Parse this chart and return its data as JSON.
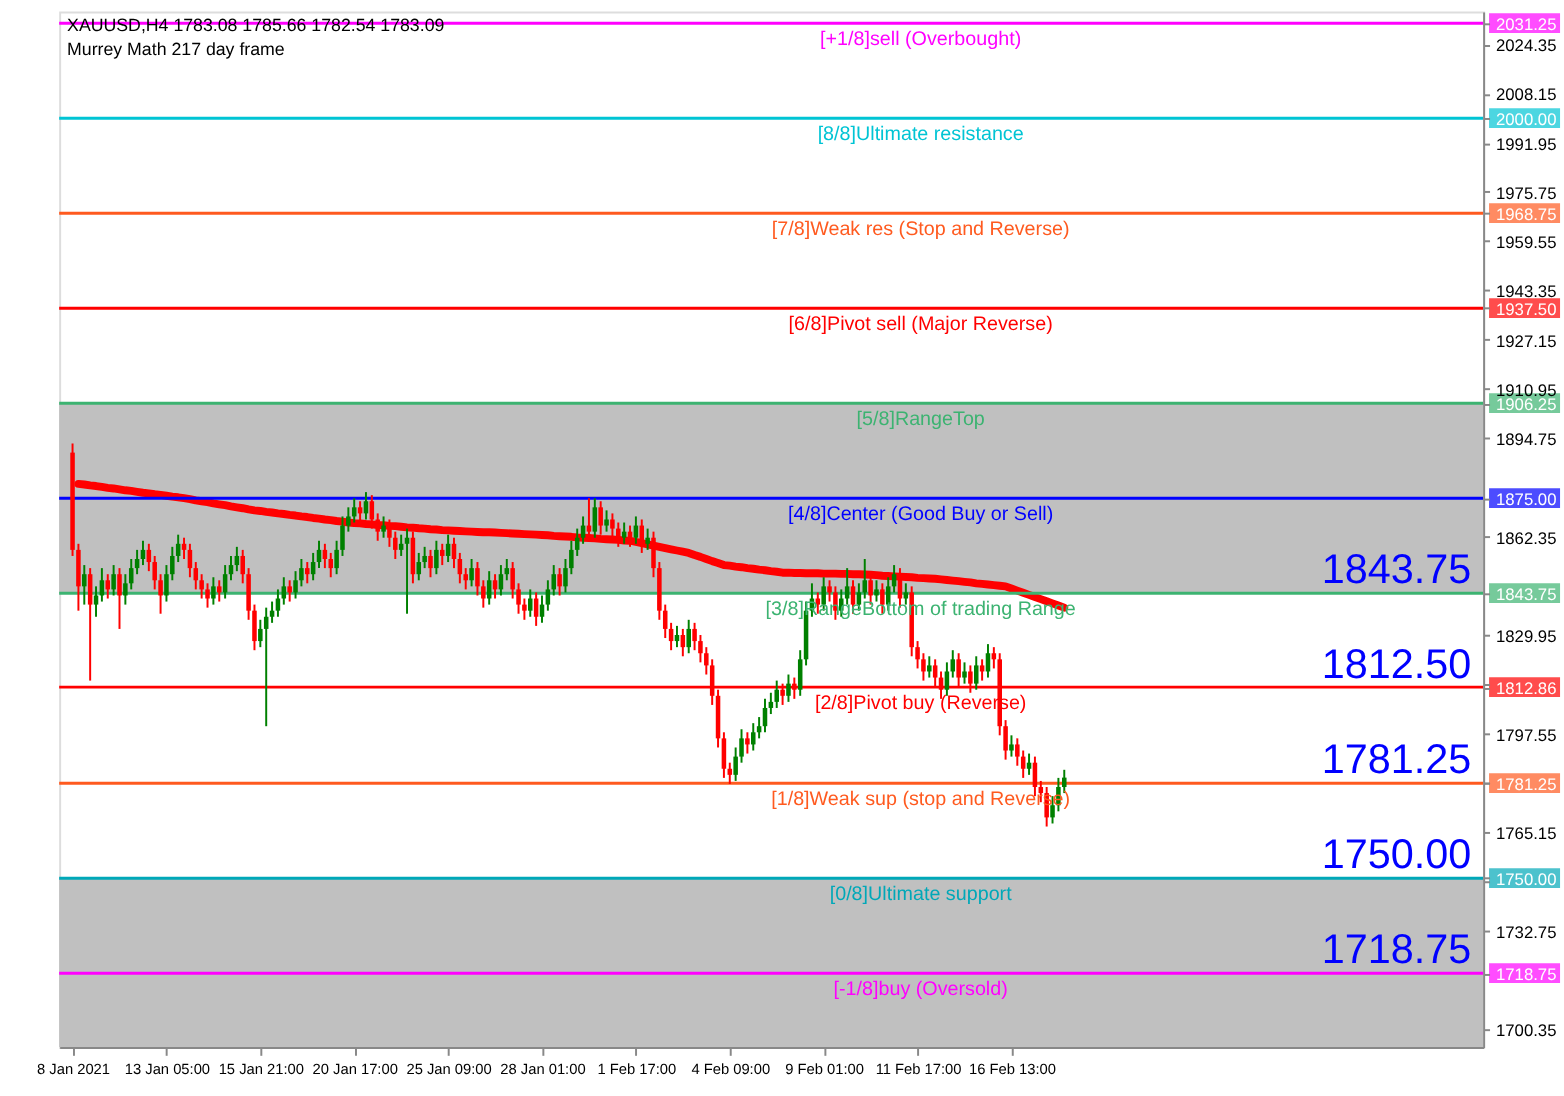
{
  "chart_data": {
    "type": "candlestick",
    "title": "XAUUSD,H4  1783.08 1785.66 1782.54 1783.09",
    "subtitle": "Murrey Math 217 day frame",
    "categories": [
      "8 Jan 2021",
      null,
      null,
      null,
      null,
      null,
      null,
      null,
      null,
      null,
      null,
      null,
      null,
      null,
      null,
      null,
      "13 Jan 05:00",
      null,
      null,
      null,
      null,
      null,
      null,
      null,
      null,
      null,
      null,
      null,
      null,
      null,
      null,
      null,
      "15 Jan 21:00",
      null,
      null,
      null,
      null,
      null,
      null,
      null,
      null,
      null,
      null,
      null,
      null,
      null,
      null,
      null,
      "20 Jan 17:00",
      null,
      null,
      null,
      null,
      null,
      null,
      null,
      null,
      null,
      null,
      null,
      null,
      null,
      null,
      null,
      "25 Jan 09:00",
      null,
      null,
      null,
      null,
      null,
      null,
      null,
      null,
      null,
      null,
      null,
      null,
      null,
      null,
      null,
      "28 Jan 01:00",
      null,
      null,
      null,
      null,
      null,
      null,
      null,
      null,
      null,
      null,
      null,
      null,
      null,
      null,
      null,
      "1 Feb 17:00",
      null,
      null,
      null,
      null,
      null,
      null,
      null,
      null,
      null,
      null,
      null,
      null,
      null,
      null,
      null,
      "4 Feb 09:00",
      null,
      null,
      null,
      null,
      null,
      null,
      null,
      null,
      null,
      null,
      null,
      null,
      null,
      null,
      null,
      "9 Feb 01:00",
      null,
      null,
      null,
      null,
      null,
      null,
      null,
      null,
      null,
      null,
      null,
      null,
      null,
      null,
      null,
      "11 Feb 17:00",
      null,
      null,
      null,
      null,
      null,
      null,
      null,
      null,
      null,
      null,
      null,
      null,
      null,
      null,
      null,
      "16 Feb 13:00",
      null,
      null,
      null,
      null,
      null,
      null,
      null,
      null,
      null
    ],
    "ylim": [
      1694.5,
      2035.1
    ],
    "yticks": [
      {
        "value": 2031.25,
        "label": "2031.25"
      },
      2024.35,
      2008.15,
      {
        "value": 2000,
        "label": "2000.00"
      },
      1991.95,
      1975.75,
      {
        "value": 1968.75,
        "label": "1968.75"
      },
      1959.55,
      1943.35,
      {
        "value": 1937.5,
        "label": "1937.50"
      },
      1927.15,
      1910.95,
      {
        "value": 1906.25,
        "label": "1906.25"
      },
      1894.75,
      {
        "value": 1875,
        "label": "1875.00"
      },
      1862.35,
      {
        "value": 1843.75,
        "label": "1843.75"
      },
      1829.95,
      {
        "value": 1813.75,
        "label": null
      },
      {
        "value": 1812.86,
        "label": "1812.86"
      },
      1797.55,
      {
        "value": 1781.35,
        "label": null
      },
      {
        "value": 1781.25,
        "label": "1781.25"
      },
      1765.15,
      {
        "value": 1750,
        "label": "1750.00"
      },
      {
        "value": 1748.95,
        "label": null
      },
      1732.75,
      {
        "value": 1718.75,
        "label": "1718.75"
      },
      1700.35
    ],
    "grid": false,
    "colors": [
      "#ff0000",
      "#ff0000",
      "#008000",
      "#ff0000",
      "#008000",
      "#008000",
      "#ff0000",
      "#008000",
      "#ff0000",
      "#008000",
      "#008000",
      "#008000",
      "#008000",
      "#ff0000",
      "#ff0000",
      "#ff0000",
      "#008000",
      "#008000",
      "#008000",
      "#ff0000",
      "#ff0000",
      "#ff0000",
      "#ff0000",
      "#ff0000",
      "#008000",
      "#ff0000",
      "#008000",
      "#008000",
      "#008000",
      "#ff0000",
      "#ff0000",
      "#ff0000",
      "#008000",
      "#008000",
      "#008000",
      "#008000",
      "#008000",
      "#ff0000",
      "#008000",
      "#008000",
      "#ff0000",
      "#008000",
      "#008000",
      "#ff0000",
      "#ff0000",
      "#008000",
      "#008000",
      "#008000",
      "#008000",
      "#ff0000",
      "#008000",
      "#ff0000",
      "#ff0000",
      "#008000",
      "#ff0000",
      "#ff0000",
      "#008000",
      "#008000",
      "#ff0000",
      "#008000",
      "#008000",
      "#ff0000",
      "#008000",
      "#ff0000",
      "#008000",
      "#ff0000",
      "#ff0000",
      "#ff0000",
      "#008000",
      "#ff0000",
      "#ff0000",
      "#008000",
      "#ff0000",
      "#008000",
      "#008000",
      "#ff0000",
      "#ff0000",
      "#ff0000",
      "#008000",
      "#ff0000",
      "#008000",
      "#008000",
      "#008000",
      "#ff0000",
      "#008000",
      "#008000",
      "#008000",
      "#008000",
      "#ff0000",
      "#008000",
      "#ff0000",
      "#008000",
      "#ff0000",
      "#ff0000",
      "#008000",
      "#ff0000",
      "#008000",
      "#ff0000",
      "#008000",
      "#ff0000",
      "#ff0000",
      "#ff0000",
      "#ff0000",
      "#008000",
      "#ff0000",
      "#008000",
      "#ff0000",
      "#ff0000",
      "#ff0000",
      "#ff0000",
      "#ff0000",
      "#ff0000",
      "#ff0000",
      "#008000",
      "#008000",
      "#ff0000",
      "#008000",
      "#008000",
      "#008000",
      "#008000",
      "#008000",
      "#ff0000",
      "#008000",
      "#ff0000",
      "#008000",
      "#008000",
      "#008000",
      "#ff0000",
      "#008000",
      "#ff0000",
      "#ff0000",
      "#008000",
      "#008000",
      "#ff0000",
      "#008000",
      "#008000",
      "#ff0000",
      "#008000",
      "#ff0000",
      "#008000",
      "#008000",
      "#ff0000",
      "#008000",
      "#ff0000",
      "#ff0000",
      "#ff0000",
      "#008000",
      "#ff0000",
      "#ff0000",
      "#008000",
      "#008000",
      "#ff0000",
      "#008000",
      "#ff0000",
      "#008000",
      "#ff0000",
      "#008000",
      "#ff0000",
      "#ff0000",
      "#ff0000",
      "#008000",
      "#ff0000",
      "#ff0000",
      "#008000",
      "#ff0000",
      "#ff0000",
      "#ff0000",
      "#008000",
      "#008000",
      "#008000"
    ],
    "ohlc": [
      [
        1890,
        1893,
        1856,
        1858
      ],
      [
        1858,
        1860,
        1838,
        1846
      ],
      [
        1846,
        1853,
        1840,
        1850
      ],
      [
        1850,
        1852,
        1815,
        1840
      ],
      [
        1840,
        1846,
        1836,
        1843
      ],
      [
        1843,
        1852,
        1841,
        1848
      ],
      [
        1848,
        1850,
        1842,
        1845
      ],
      [
        1845,
        1853,
        1843,
        1850
      ],
      [
        1850,
        1852,
        1832,
        1843
      ],
      [
        1843,
        1850,
        1840,
        1847
      ],
      [
        1847,
        1855,
        1845,
        1852
      ],
      [
        1852,
        1858,
        1850,
        1855
      ],
      [
        1855,
        1861,
        1853,
        1858
      ],
      [
        1858,
        1860,
        1851,
        1854
      ],
      [
        1854,
        1856,
        1845,
        1848
      ],
      [
        1848,
        1850,
        1837,
        1843
      ],
      [
        1843,
        1853,
        1841,
        1850
      ],
      [
        1850,
        1859,
        1848,
        1856
      ],
      [
        1856,
        1863,
        1854,
        1860
      ],
      [
        1860,
        1862,
        1855,
        1858
      ],
      [
        1858,
        1860,
        1849,
        1852
      ],
      [
        1852,
        1854,
        1845,
        1848
      ],
      [
        1848,
        1850,
        1842,
        1845
      ],
      [
        1845,
        1847,
        1839,
        1842
      ],
      [
        1842,
        1849,
        1840,
        1846
      ],
      [
        1846,
        1848,
        1841,
        1844
      ],
      [
        1844,
        1853,
        1842,
        1850
      ],
      [
        1850,
        1856,
        1848,
        1853
      ],
      [
        1853,
        1859,
        1851,
        1856
      ],
      [
        1856,
        1858,
        1847,
        1850
      ],
      [
        1850,
        1852,
        1835,
        1838
      ],
      [
        1838,
        1840,
        1825,
        1828
      ],
      [
        1828,
        1835,
        1826,
        1832
      ],
      [
        1832,
        1839,
        1800,
        1836
      ],
      [
        1836,
        1841,
        1834,
        1838
      ],
      [
        1838,
        1845,
        1836,
        1842
      ],
      [
        1842,
        1849,
        1840,
        1846
      ],
      [
        1846,
        1848,
        1841,
        1844
      ],
      [
        1844,
        1851,
        1842,
        1848
      ],
      [
        1848,
        1855,
        1846,
        1852
      ],
      [
        1852,
        1854,
        1847,
        1850
      ],
      [
        1850,
        1857,
        1848,
        1854
      ],
      [
        1854,
        1861,
        1852,
        1858
      ],
      [
        1858,
        1860,
        1852,
        1855
      ],
      [
        1855,
        1857,
        1849,
        1852
      ],
      [
        1852,
        1861,
        1850,
        1858
      ],
      [
        1858,
        1869,
        1856,
        1866
      ],
      [
        1866,
        1872,
        1864,
        1869
      ],
      [
        1869,
        1875,
        1867,
        1872
      ],
      [
        1872,
        1874,
        1867,
        1870
      ],
      [
        1870,
        1877,
        1868,
        1874
      ],
      [
        1874,
        1876,
        1865,
        1868
      ],
      [
        1868,
        1870,
        1861,
        1864
      ],
      [
        1864,
        1869,
        1862,
        1866
      ],
      [
        1866,
        1868,
        1859,
        1862
      ],
      [
        1862,
        1864,
        1855,
        1858
      ],
      [
        1858,
        1863,
        1856,
        1860
      ],
      [
        1860,
        1865,
        1837,
        1862
      ],
      [
        1862,
        1864,
        1847,
        1850
      ],
      [
        1850,
        1857,
        1848,
        1854
      ],
      [
        1854,
        1859,
        1852,
        1856
      ],
      [
        1856,
        1858,
        1849,
        1852
      ],
      [
        1852,
        1861,
        1850,
        1858
      ],
      [
        1858,
        1860,
        1853,
        1856
      ],
      [
        1856,
        1863,
        1854,
        1860
      ],
      [
        1860,
        1862,
        1852,
        1855
      ],
      [
        1855,
        1857,
        1847,
        1850
      ],
      [
        1850,
        1852,
        1845,
        1848
      ],
      [
        1848,
        1855,
        1846,
        1852
      ],
      [
        1852,
        1854,
        1843,
        1846
      ],
      [
        1846,
        1848,
        1839,
        1842
      ],
      [
        1842,
        1851,
        1840,
        1848
      ],
      [
        1848,
        1850,
        1842,
        1845
      ],
      [
        1845,
        1853,
        1843,
        1850
      ],
      [
        1850,
        1855,
        1848,
        1852
      ],
      [
        1852,
        1854,
        1842,
        1845
      ],
      [
        1845,
        1847,
        1837,
        1840
      ],
      [
        1840,
        1842,
        1835,
        1838
      ],
      [
        1838,
        1845,
        1836,
        1842
      ],
      [
        1842,
        1844,
        1833,
        1836
      ],
      [
        1836,
        1843,
        1834,
        1840
      ],
      [
        1840,
        1848,
        1838,
        1845
      ],
      [
        1845,
        1853,
        1843,
        1850
      ],
      [
        1850,
        1852,
        1843,
        1846
      ],
      [
        1846,
        1855,
        1844,
        1852
      ],
      [
        1852,
        1861,
        1850,
        1858
      ],
      [
        1858,
        1865,
        1856,
        1862
      ],
      [
        1862,
        1869,
        1860,
        1866
      ],
      [
        1866,
        1875,
        1861,
        1864
      ],
      [
        1864,
        1875,
        1862,
        1872
      ],
      [
        1872,
        1874,
        1863,
        1866
      ],
      [
        1866,
        1871,
        1864,
        1868
      ],
      [
        1868,
        1870,
        1862,
        1865
      ],
      [
        1865,
        1867,
        1859,
        1862
      ],
      [
        1862,
        1867,
        1860,
        1864
      ],
      [
        1864,
        1866,
        1859,
        1862
      ],
      [
        1862,
        1869,
        1860,
        1866
      ],
      [
        1866,
        1868,
        1857,
        1860
      ],
      [
        1860,
        1865,
        1858,
        1862
      ],
      [
        1862,
        1864,
        1849,
        1852
      ],
      [
        1852,
        1854,
        1835,
        1838
      ],
      [
        1838,
        1840,
        1829,
        1832
      ],
      [
        1832,
        1834,
        1825,
        1828
      ],
      [
        1828,
        1833,
        1826,
        1830
      ],
      [
        1830,
        1832,
        1823,
        1826
      ],
      [
        1826,
        1835,
        1824,
        1832
      ],
      [
        1832,
        1834,
        1825,
        1828
      ],
      [
        1828,
        1830,
        1821,
        1824
      ],
      [
        1824,
        1826,
        1817,
        1820
      ],
      [
        1820,
        1822,
        1807,
        1810
      ],
      [
        1810,
        1812,
        1793,
        1796
      ],
      [
        1796,
        1798,
        1783,
        1786
      ],
      [
        1786,
        1788,
        1781,
        1784
      ],
      [
        1784,
        1793,
        1782,
        1790
      ],
      [
        1790,
        1799,
        1788,
        1796
      ],
      [
        1796,
        1798,
        1791,
        1794
      ],
      [
        1794,
        1801,
        1792,
        1798
      ],
      [
        1798,
        1803,
        1796,
        1800
      ],
      [
        1800,
        1809,
        1798,
        1806
      ],
      [
        1806,
        1811,
        1804,
        1808
      ],
      [
        1808,
        1815,
        1806,
        1812
      ],
      [
        1812,
        1814,
        1807,
        1810
      ],
      [
        1810,
        1817,
        1808,
        1814
      ],
      [
        1814,
        1816,
        1809,
        1812
      ],
      [
        1812,
        1825,
        1810,
        1822
      ],
      [
        1822,
        1841,
        1820,
        1838
      ],
      [
        1838,
        1847,
        1836,
        1842
      ],
      [
        1842,
        1844,
        1837,
        1840
      ],
      [
        1840,
        1849,
        1838,
        1846
      ],
      [
        1846,
        1848,
        1841,
        1844
      ],
      [
        1844,
        1846,
        1835,
        1838
      ],
      [
        1838,
        1845,
        1836,
        1842
      ],
      [
        1842,
        1852,
        1840,
        1846
      ],
      [
        1846,
        1848,
        1837,
        1840
      ],
      [
        1840,
        1847,
        1838,
        1844
      ],
      [
        1844,
        1855,
        1842,
        1848
      ],
      [
        1848,
        1850,
        1840,
        1843
      ],
      [
        1843,
        1848,
        1841,
        1845
      ],
      [
        1845,
        1847,
        1837,
        1840
      ],
      [
        1840,
        1849,
        1838,
        1846
      ],
      [
        1846,
        1853,
        1844,
        1850
      ],
      [
        1850,
        1852,
        1839,
        1842
      ],
      [
        1842,
        1847,
        1840,
        1844
      ],
      [
        1844,
        1846,
        1823,
        1826
      ],
      [
        1826,
        1828,
        1819,
        1822
      ],
      [
        1822,
        1824,
        1815,
        1818
      ],
      [
        1818,
        1823,
        1816,
        1820
      ],
      [
        1820,
        1822,
        1813,
        1816
      ],
      [
        1816,
        1818,
        1809,
        1812
      ],
      [
        1812,
        1821,
        1810,
        1818
      ],
      [
        1818,
        1825,
        1816,
        1822
      ],
      [
        1822,
        1824,
        1813,
        1816
      ],
      [
        1816,
        1821,
        1814,
        1818
      ],
      [
        1818,
        1820,
        1811,
        1814
      ],
      [
        1814,
        1823,
        1812,
        1820
      ],
      [
        1820,
        1822,
        1815,
        1818
      ],
      [
        1818,
        1827,
        1816,
        1824
      ],
      [
        1824,
        1826,
        1819,
        1822
      ],
      [
        1822,
        1824,
        1797,
        1800
      ],
      [
        1800,
        1802,
        1789,
        1792
      ],
      [
        1792,
        1797,
        1790,
        1794
      ],
      [
        1794,
        1796,
        1787,
        1790
      ],
      [
        1790,
        1792,
        1783,
        1786
      ],
      [
        1786,
        1791,
        1784,
        1788
      ],
      [
        1788,
        1790,
        1777,
        1780
      ],
      [
        1780,
        1782,
        1775,
        1778
      ],
      [
        1778,
        1780,
        1767,
        1770
      ],
      [
        1770,
        1777,
        1768,
        1774
      ],
      [
        1774,
        1783,
        1772,
        1780
      ],
      [
        1780,
        1785.66,
        1778,
        1783.09
      ]
    ],
    "series": [
      {
        "type": "line",
        "color": "#ff0000",
        "values": [
          null,
          1879.7,
          1879.5,
          1879.2,
          1879,
          1878.7,
          1878.4,
          1878.2,
          1877.9,
          1877.6,
          1877.4,
          1877.1,
          1876.8,
          1876.6,
          1876.3,
          1876.1,
          1875.8,
          1875.5,
          1875.3,
          1875,
          1874.7,
          1874.3,
          1874,
          1873.7,
          1873.3,
          1873,
          1872.7,
          1872.3,
          1872,
          1871.7,
          1871.3,
          1871,
          1870.8,
          1870.5,
          1870.3,
          1870,
          1869.8,
          1869.5,
          1869.3,
          1869,
          1868.8,
          1868.5,
          1868.3,
          1868,
          1867.8,
          1867.5,
          1867.3,
          1867,
          1866.8,
          1866.7,
          1866.5,
          1866.4,
          1866.2,
          1866.1,
          1865.9,
          1865.8,
          1865.6,
          1865.4,
          1865.3,
          1865.1,
          1865,
          1864.8,
          1864.7,
          1864.5,
          1864.4,
          1864.3,
          1864.2,
          1864.1,
          1864,
          1863.9,
          1863.8,
          1863.8,
          1863.7,
          1863.6,
          1863.5,
          1863.4,
          1863.3,
          1863.2,
          1863.1,
          1863,
          1862.9,
          1862.8,
          1862.6,
          1862.5,
          1862.4,
          1862.3,
          1862.1,
          1862,
          1861.9,
          1861.8,
          1861.6,
          1861.5,
          1861.4,
          1861.3,
          1861.1,
          1861,
          1860.6,
          1860.2,
          1859.8,
          1859.4,
          1859,
          1858.6,
          1858.2,
          1857.8,
          1857.4,
          1857,
          1856.3,
          1855.7,
          1855,
          1854.3,
          1853.7,
          1853,
          1852.8,
          1852.5,
          1852.3,
          1852,
          1851.8,
          1851.5,
          1851.3,
          1851,
          1850.8,
          1850.5,
          1850.5,
          1850.4,
          1850.4,
          1850.3,
          1850.3,
          1850.3,
          1850.2,
          1850.2,
          1850.2,
          1850.1,
          1850.1,
          1850,
          1850,
          1849.9,
          1849.8,
          1849.7,
          1849.5,
          1849.4,
          1849.3,
          1849.2,
          1849.1,
          1849,
          1848.8,
          1848.7,
          1848.6,
          1848.5,
          1848.3,
          1848.1,
          1847.9,
          1847.7,
          1847.5,
          1847.3,
          1847,
          1846.8,
          1846.6,
          1846.4,
          1846.2,
          1846,
          1845.3,
          1844.6,
          1843.9,
          1843.2,
          1842.5,
          1841.8,
          1841.1,
          1840.4,
          1839.7,
          1839
        ]
      }
    ],
    "ref_lines": [
      {
        "axis": "y",
        "value": 2031.25,
        "label": "[+1/8]sell (Overbought)",
        "color": "#ff00ff"
      },
      {
        "axis": "y",
        "value": 2000.0,
        "label": "[8/8]Ultimate resistance",
        "color": "#00c4d4"
      },
      {
        "axis": "y",
        "value": 1968.75,
        "label": "[7/8]Weak res (Stop and Reverse)",
        "color": "#ff5a1f"
      },
      {
        "axis": "y",
        "value": 1937.5,
        "label": "[6/8]Pivot sell (Major Reverse)",
        "color": "#ff0000"
      },
      {
        "axis": "y",
        "value": 1906.25,
        "label": "[5/8]RangeTop",
        "color": "#3cb371"
      },
      {
        "axis": "y",
        "value": 1875.0,
        "label": "[4/8]Center (Good Buy or Sell)",
        "color": "#0000ff"
      },
      {
        "axis": "y",
        "value": 1843.75,
        "label": "[3/8]RangeBottom of trading Range",
        "color": "#3cb371"
      },
      {
        "axis": "y",
        "value": 1812.86,
        "label": "[2/8]Pivot buy (Reverse)",
        "color": "#ff0000"
      },
      {
        "axis": "y",
        "value": 1781.25,
        "label": "[1/8]Weak sup (stop and Reverse)",
        "color": "#ff5a1f"
      },
      {
        "axis": "y",
        "value": 1750.0,
        "label": "[0/8]Ultimate support",
        "color": "#00a8b8"
      },
      {
        "axis": "y",
        "value": 1718.75,
        "label": "[-1/8]buy (Oversold)",
        "color": "#ff00ff"
      }
    ],
    "bands": [
      {
        "axis": "y",
        "from": 1843.75,
        "to": 1906.25,
        "color": "#c0c0c0"
      },
      {
        "axis": "y",
        "from": 1694.5,
        "to": 1750.0,
        "color": "#c0c0c0"
      }
    ],
    "annotations": [
      {
        "text": "1843.75",
        "y": 1843.75
      },
      {
        "text": "1812.50",
        "y": 1812.5
      },
      {
        "text": "1781.25",
        "y": 1781.25
      },
      {
        "text": "1750.00",
        "y": 1750.0
      },
      {
        "text": "1718.75",
        "y": 1718.75
      }
    ]
  }
}
